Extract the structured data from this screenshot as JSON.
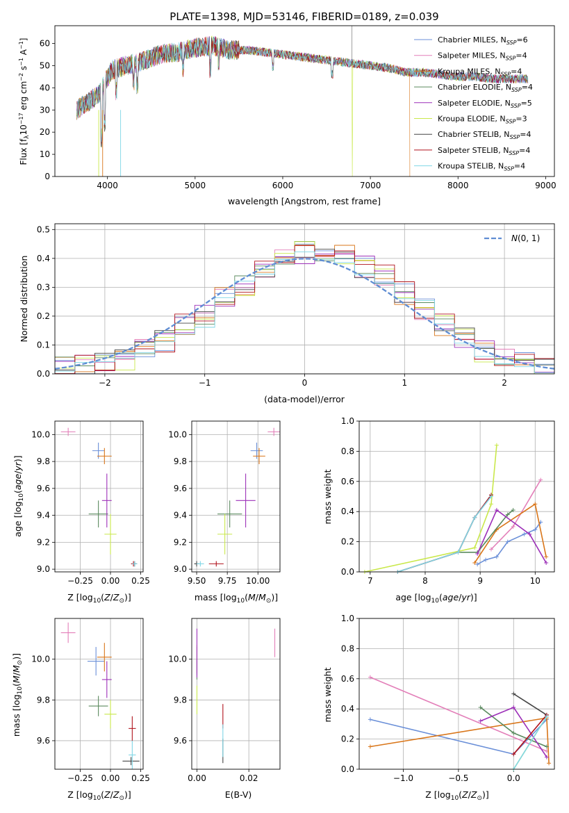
{
  "chart_data": [
    {
      "id": "spectrum",
      "type": "line",
      "title": "PLATE=1398, MJD=53146, FIBERID=0189, z=0.039",
      "xlabel": "wavelength [Angstrom, rest frame]",
      "ylabel": "Flux [fλ10⁻¹⁷ erg cm⁻² s⁻¹ A⁻¹]",
      "xlim": [
        3400,
        9100
      ],
      "ylim": [
        0,
        68
      ],
      "xticks": [
        4000,
        5000,
        6000,
        7000,
        8000,
        9000
      ],
      "yticks": [
        0,
        10,
        20,
        30,
        40,
        50,
        60
      ],
      "grid": false,
      "legend_position": "top-right",
      "series": [
        {
          "name": "Chabrier MILES, N_SSP=6",
          "color": "#6a8fd8"
        },
        {
          "name": "Salpeter MILES, N_SSP=4",
          "color": "#e37fb9"
        },
        {
          "name": "Kroupa MILES, N_SSP=4",
          "color": "#d9761a"
        },
        {
          "name": "Chabrier ELODIE, N_SSP=4",
          "color": "#5a8a5e"
        },
        {
          "name": "Salpeter ELODIE, N_SSP=5",
          "color": "#9c2fb8"
        },
        {
          "name": "Kroupa ELODIE, N_SSP=3",
          "color": "#c9e84a"
        },
        {
          "name": "Chabrier STELIB, N_SSP=4",
          "color": "#444444"
        },
        {
          "name": "Salpeter STELIB, N_SSP=4",
          "color": "#b0121b"
        },
        {
          "name": "Kroupa STELIB, N_SSP=4",
          "color": "#7fd6e6"
        }
      ],
      "data_envelope": {
        "x": [
          3650,
          3750,
          3900,
          4050,
          4200,
          4400,
          4600,
          4800,
          5000,
          5200,
          5400,
          5600,
          5800,
          6000,
          6200,
          6400,
          6600,
          6800,
          7000,
          7200,
          7400,
          7600,
          7800,
          8000,
          8200,
          8400,
          8600,
          8800
        ],
        "y": [
          30,
          33,
          37,
          48,
          50,
          52,
          55,
          56,
          58,
          59,
          57,
          57,
          56,
          55,
          54,
          53,
          52,
          51,
          50,
          49,
          47,
          47,
          46,
          45,
          45,
          44,
          44,
          44
        ]
      }
    },
    {
      "id": "residuals",
      "type": "line",
      "xlabel": "(data-model)/error",
      "ylabel": "Normed distribution",
      "xlim": [
        -2.5,
        2.5
      ],
      "ylim": [
        0,
        0.52
      ],
      "xticks": [
        -2,
        -1,
        0,
        1,
        2
      ],
      "yticks": [
        0.0,
        0.1,
        0.2,
        0.3,
        0.4,
        0.5
      ],
      "grid": true,
      "legend_position": "top-right",
      "reference_curve": {
        "name": "N(0,1)",
        "mean": 0,
        "sigma": 1,
        "color": "#5f8dd3"
      },
      "histogram_bins": [
        -2.5,
        -2.3,
        -2.1,
        -1.9,
        -1.7,
        -1.5,
        -1.3,
        -1.1,
        -0.9,
        -0.7,
        -0.5,
        -0.3,
        -0.1,
        0.1,
        0.3,
        0.5,
        0.7,
        0.9,
        1.1,
        1.3,
        1.5,
        1.7,
        1.9,
        2.1,
        2.3,
        2.5
      ],
      "histogram_values": [
        0.02,
        0.03,
        0.04,
        0.05,
        0.08,
        0.11,
        0.17,
        0.2,
        0.26,
        0.31,
        0.36,
        0.4,
        0.42,
        0.43,
        0.41,
        0.37,
        0.34,
        0.28,
        0.22,
        0.17,
        0.12,
        0.08,
        0.05,
        0.04,
        0.03
      ]
    },
    {
      "id": "age-vs-Z",
      "type": "scatter",
      "xlabel": "Z [log10(Z/Z☉)]",
      "ylabel": "age  [log10(age/yr)]",
      "xlim": [
        -0.46,
        0.27
      ],
      "ylim": [
        8.98,
        10.1
      ],
      "xticks": [
        -0.25,
        0.0,
        0.25
      ],
      "yticks": [
        9.0,
        9.2,
        9.4,
        9.6,
        9.8,
        10.0
      ],
      "grid": true,
      "points": [
        {
          "x": -0.1,
          "y": 9.88,
          "xerr": 0.05,
          "yerr": 0.06,
          "color": "#6a8fd8"
        },
        {
          "x": -0.35,
          "y": 10.02,
          "xerr": 0.06,
          "yerr": 0.03,
          "color": "#e37fb9"
        },
        {
          "x": -0.05,
          "y": 9.84,
          "xerr": 0.06,
          "yerr": 0.06,
          "color": "#d9761a"
        },
        {
          "x": -0.1,
          "y": 9.41,
          "xerr": 0.08,
          "yerr": 0.1,
          "color": "#5a8a5e"
        },
        {
          "x": -0.03,
          "y": 9.51,
          "xerr": 0.04,
          "yerr": 0.2,
          "color": "#9c2fb8"
        },
        {
          "x": 0.0,
          "y": 9.26,
          "xerr": 0.05,
          "yerr": 0.15,
          "color": "#c9e84a"
        },
        {
          "x": 0.2,
          "y": 9.04,
          "xerr": 0.02,
          "yerr": 0.02,
          "color": "#444444"
        },
        {
          "x": 0.19,
          "y": 9.04,
          "xerr": 0.02,
          "yerr": 0.02,
          "color": "#b0121b"
        },
        {
          "x": 0.2,
          "y": 9.04,
          "xerr": 0.02,
          "yerr": 0.02,
          "color": "#7fd6e6"
        }
      ]
    },
    {
      "id": "age-vs-mass",
      "type": "scatter",
      "xlabel": "mass [log10(M/M☉)]",
      "ylabel": "",
      "xlim": [
        9.46,
        10.18
      ],
      "ylim": [
        8.98,
        10.1
      ],
      "xticks": [
        9.5,
        9.75,
        10.0
      ],
      "yticks": [
        9.0,
        9.2,
        9.4,
        9.6,
        9.8,
        10.0
      ],
      "grid": true,
      "points": [
        {
          "x": 9.99,
          "y": 9.88,
          "xerr": 0.05,
          "yerr": 0.06,
          "color": "#6a8fd8"
        },
        {
          "x": 10.13,
          "y": 10.02,
          "xerr": 0.05,
          "yerr": 0.03,
          "color": "#e37fb9"
        },
        {
          "x": 10.01,
          "y": 9.84,
          "xerr": 0.05,
          "yerr": 0.06,
          "color": "#d9761a"
        },
        {
          "x": 9.77,
          "y": 9.41,
          "xerr": 0.1,
          "yerr": 0.1,
          "color": "#5a8a5e"
        },
        {
          "x": 9.9,
          "y": 9.51,
          "xerr": 0.08,
          "yerr": 0.2,
          "color": "#9c2fb8"
        },
        {
          "x": 9.73,
          "y": 9.26,
          "xerr": 0.06,
          "yerr": 0.15,
          "color": "#c9e84a"
        },
        {
          "x": 9.5,
          "y": 9.04,
          "xerr": 0.02,
          "yerr": 0.02,
          "color": "#444444"
        },
        {
          "x": 9.66,
          "y": 9.04,
          "xerr": 0.06,
          "yerr": 0.02,
          "color": "#b0121b"
        },
        {
          "x": 9.53,
          "y": 9.04,
          "xerr": 0.03,
          "yerr": 0.02,
          "color": "#7fd6e6"
        }
      ]
    },
    {
      "id": "mass-weight-vs-age",
      "type": "line",
      "xlabel": "age  [log10(age/yr)]",
      "ylabel": "mass weight",
      "xlim": [
        6.8,
        10.35
      ],
      "ylim": [
        0,
        1.0
      ],
      "xticks": [
        7,
        8,
        9,
        10
      ],
      "yticks": [
        0.0,
        0.2,
        0.4,
        0.6,
        0.8,
        1.0
      ],
      "grid": true,
      "series": [
        {
          "color": "#6a8fd8",
          "x": [
            8.95,
            9.1,
            9.3,
            9.5,
            9.8,
            10.0,
            10.1
          ],
          "y": [
            0.05,
            0.08,
            0.1,
            0.2,
            0.25,
            0.28,
            0.33
          ]
        },
        {
          "color": "#e37fb9",
          "x": [
            9.2,
            9.6,
            10.1
          ],
          "y": [
            0.15,
            0.3,
            0.61
          ]
        },
        {
          "color": "#d9761a",
          "x": [
            8.9,
            9.3,
            10.0,
            10.2
          ],
          "y": [
            0.06,
            0.28,
            0.45,
            0.1
          ]
        },
        {
          "color": "#5a8a5e",
          "x": [
            8.6,
            8.95,
            9.5,
            9.6
          ],
          "y": [
            0.13,
            0.13,
            0.38,
            0.41
          ]
        },
        {
          "color": "#9c2fb8",
          "x": [
            8.95,
            9.3,
            9.9,
            10.2
          ],
          "y": [
            0.12,
            0.41,
            0.25,
            0.06
          ]
        },
        {
          "color": "#c9e84a",
          "x": [
            6.9,
            8.9,
            9.2,
            9.3
          ],
          "y": [
            0.0,
            0.16,
            0.45,
            0.84
          ]
        },
        {
          "color": "#444444",
          "x": [
            7.5,
            8.6,
            8.9,
            9.2
          ],
          "y": [
            0.0,
            0.13,
            0.36,
            0.51
          ]
        },
        {
          "color": "#b0121b",
          "x": [
            7.5,
            8.6,
            8.9,
            9.2
          ],
          "y": [
            0.0,
            0.13,
            0.36,
            0.51
          ]
        },
        {
          "color": "#7fd6e6",
          "x": [
            7.5,
            8.6,
            8.9,
            9.2
          ],
          "y": [
            0.0,
            0.13,
            0.36,
            0.5
          ]
        }
      ]
    },
    {
      "id": "mass-vs-Z",
      "type": "scatter",
      "xlabel": "Z [log10(Z/Z☉)]",
      "ylabel": "mass [log10(M/M☉)]",
      "xlim": [
        -0.46,
        0.27
      ],
      "ylim": [
        9.46,
        10.2
      ],
      "xticks": [
        -0.25,
        0.0,
        0.25
      ],
      "yticks": [
        9.6,
        9.8,
        10.0
      ],
      "grid": true,
      "points": [
        {
          "x": -0.12,
          "y": 9.99,
          "xerr": 0.07,
          "yerr": 0.07,
          "color": "#6a8fd8"
        },
        {
          "x": -0.35,
          "y": 10.13,
          "xerr": 0.06,
          "yerr": 0.05,
          "color": "#e37fb9"
        },
        {
          "x": -0.05,
          "y": 10.01,
          "xerr": 0.06,
          "yerr": 0.07,
          "color": "#d9761a"
        },
        {
          "x": -0.1,
          "y": 9.77,
          "xerr": 0.08,
          "yerr": 0.05,
          "color": "#5a8a5e"
        },
        {
          "x": -0.03,
          "y": 9.9,
          "xerr": 0.04,
          "yerr": 0.09,
          "color": "#9c2fb8"
        },
        {
          "x": 0.0,
          "y": 9.73,
          "xerr": 0.05,
          "yerr": 0.07,
          "color": "#c9e84a"
        },
        {
          "x": 0.17,
          "y": 9.5,
          "xerr": 0.07,
          "yerr": 0.02,
          "color": "#444444"
        },
        {
          "x": 0.18,
          "y": 9.66,
          "xerr": 0.03,
          "yerr": 0.06,
          "color": "#b0121b"
        },
        {
          "x": 0.18,
          "y": 9.53,
          "xerr": 0.03,
          "yerr": 0.07,
          "color": "#7fd6e6"
        }
      ]
    },
    {
      "id": "mass-vs-EBV",
      "type": "scatter",
      "xlabel": "E(B-V)",
      "ylabel": "",
      "xlim": [
        -0.002,
        0.032
      ],
      "ylim": [
        9.46,
        10.2
      ],
      "xticks": [
        0.0,
        0.02
      ],
      "yticks": [
        9.6,
        9.8,
        10.0
      ],
      "grid": true,
      "points": [
        {
          "x": 0.0,
          "y": 9.99,
          "yerr": 0.07,
          "color": "#6a8fd8"
        },
        {
          "x": 0.03,
          "y": 10.08,
          "yerr": 0.07,
          "color": "#e37fb9"
        },
        {
          "x": 0.0,
          "y": 10.0,
          "yerr": 0.07,
          "color": "#d9761a"
        },
        {
          "x": 0.0,
          "y": 9.95,
          "yerr": 0.05,
          "color": "#5a8a5e"
        },
        {
          "x": 0.0,
          "y": 10.03,
          "yerr": 0.12,
          "color": "#9c2fb8"
        },
        {
          "x": 0.0,
          "y": 9.8,
          "yerr": 0.07,
          "color": "#c9e84a"
        },
        {
          "x": 0.01,
          "y": 9.55,
          "yerr": 0.06,
          "color": "#444444"
        },
        {
          "x": 0.01,
          "y": 9.72,
          "yerr": 0.06,
          "color": "#b0121b"
        },
        {
          "x": 0.01,
          "y": 9.6,
          "yerr": 0.08,
          "color": "#7fd6e6"
        }
      ]
    },
    {
      "id": "mass-weight-vs-Z",
      "type": "line",
      "xlabel": "Z [log10(Z/Z☉)]",
      "ylabel": "mass weight",
      "xlim": [
        -1.4,
        0.37
      ],
      "ylim": [
        0,
        1.0
      ],
      "xticks": [
        -1.0,
        -0.5,
        0.0
      ],
      "yticks": [
        0.0,
        0.2,
        0.4,
        0.6,
        0.8,
        1.0
      ],
      "grid": true,
      "series": [
        {
          "color": "#6a8fd8",
          "x": [
            -1.3,
            0.0,
            0.3
          ],
          "y": [
            0.33,
            0.1,
            0.33
          ]
        },
        {
          "color": "#e37fb9",
          "x": [
            -1.3,
            0.3
          ],
          "y": [
            0.61,
            0.12
          ]
        },
        {
          "color": "#d9761a",
          "x": [
            -1.3,
            0.3,
            0.32
          ],
          "y": [
            0.15,
            0.34,
            0.04
          ]
        },
        {
          "color": "#5a8a5e",
          "x": [
            -0.3,
            0.0,
            0.3
          ],
          "y": [
            0.41,
            0.24,
            0.15
          ]
        },
        {
          "color": "#9c2fb8",
          "x": [
            -0.3,
            0.0,
            0.3
          ],
          "y": [
            0.32,
            0.41,
            0.08
          ]
        },
        {
          "color": "#c9e84a",
          "x": [
            0.0,
            0.3
          ],
          "y": [
            0.0,
            0.35
          ]
        },
        {
          "color": "#444444",
          "x": [
            0.0,
            0.3
          ],
          "y": [
            0.5,
            0.36
          ]
        },
        {
          "color": "#b0121b",
          "x": [
            0.0,
            0.3
          ],
          "y": [
            0.1,
            0.36
          ]
        },
        {
          "color": "#7fd6e6",
          "x": [
            0.0,
            0.3
          ],
          "y": [
            0.0,
            0.35
          ]
        }
      ]
    }
  ]
}
